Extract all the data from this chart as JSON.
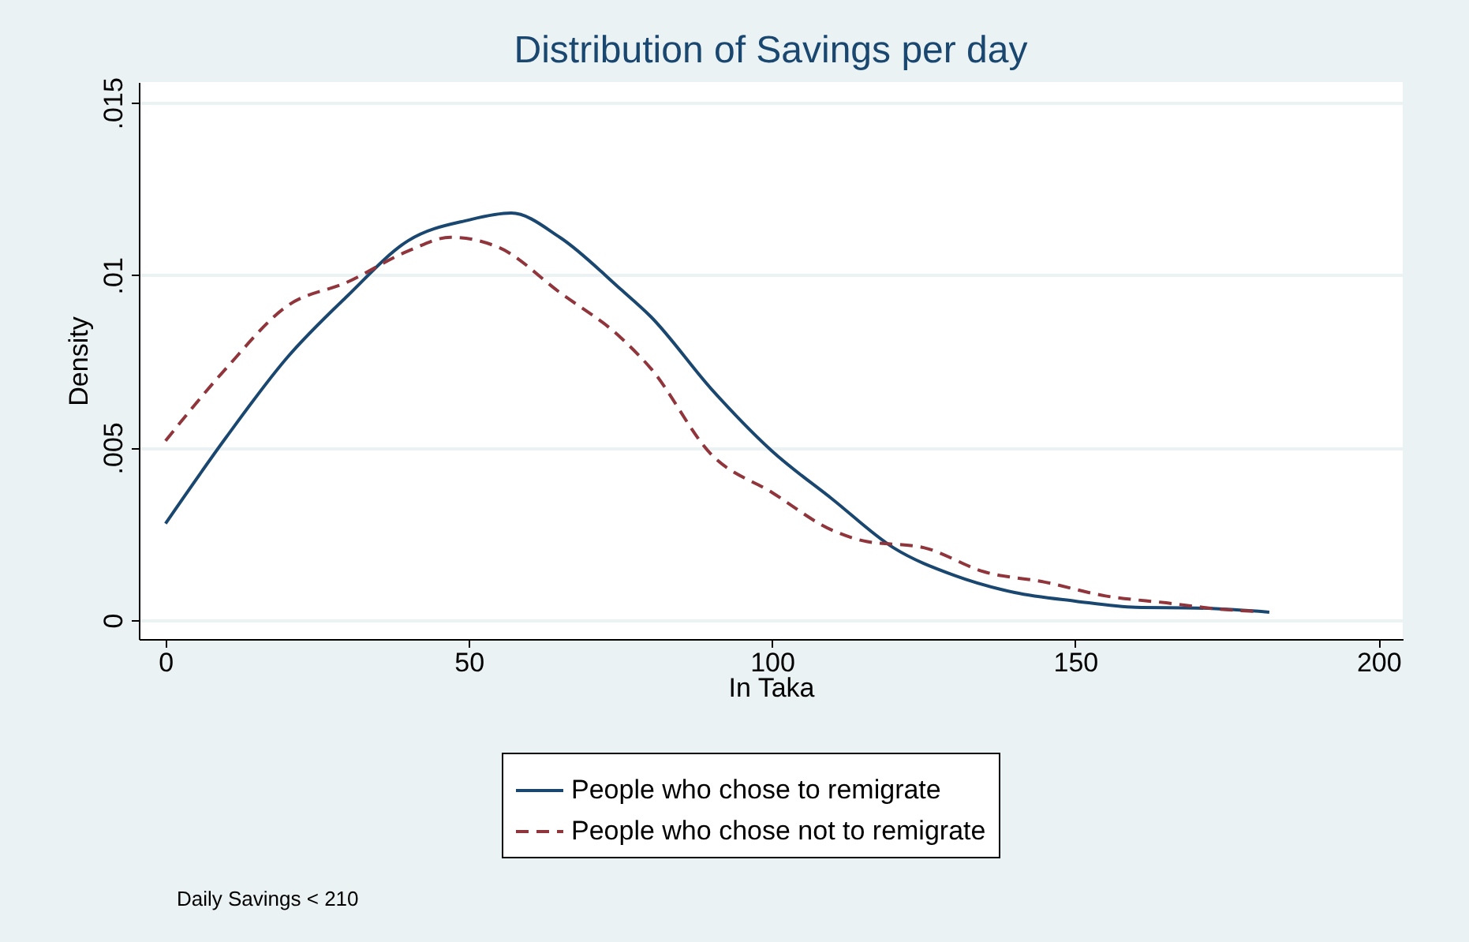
{
  "chart_data": {
    "type": "line",
    "title": "Distribution of Savings per day",
    "xlabel": "In Taka",
    "ylabel": "Density",
    "xlim": [
      -4.4,
      204
    ],
    "xticks": [
      0,
      50,
      100,
      150,
      200
    ],
    "ylim": [
      -0.00055,
      0.0156
    ],
    "yticks": [
      0,
      {
        "value": 0.005,
        "label": ".005"
      },
      {
        "value": 0.01,
        "label": ".01"
      },
      {
        "value": 0.015,
        "label": ".015"
      }
    ],
    "grid": "y",
    "legend": "bottom",
    "annotations": [
      "Daily Savings < 210"
    ],
    "series": [
      {
        "name": "People who chose to remigrate",
        "color": "#1a476f",
        "line_style": "solid",
        "x": [
          0,
          10,
          20,
          30,
          40,
          50,
          57,
          65,
          75,
          80,
          90,
          100,
          110,
          120,
          130,
          140,
          150,
          160,
          170,
          182
        ],
        "values": [
          0.0028,
          0.0053,
          0.0076,
          0.0094,
          0.011,
          0.0116,
          0.0118,
          0.0111,
          0.0096,
          0.0088,
          0.0067,
          0.0049,
          0.0035,
          0.0021,
          0.0013,
          0.0008,
          0.00055,
          0.00037,
          0.00035,
          0.00023
        ]
      },
      {
        "name": "People who chose not to remigrate",
        "color": "#90353b",
        "line_style": "dashed",
        "x": [
          0,
          10,
          20,
          30,
          40,
          47,
          55,
          65,
          75,
          80,
          90,
          100,
          110,
          115,
          125,
          135,
          145,
          155,
          165,
          175,
          180
        ],
        "values": [
          0.0052,
          0.0073,
          0.0091,
          0.0098,
          0.0107,
          0.0111,
          0.0108,
          0.0095,
          0.0082,
          0.0073,
          0.0048,
          0.0037,
          0.0026,
          0.0023,
          0.0021,
          0.0014,
          0.0011,
          0.0007,
          0.0005,
          0.0003,
          0.00025
        ]
      }
    ]
  }
}
